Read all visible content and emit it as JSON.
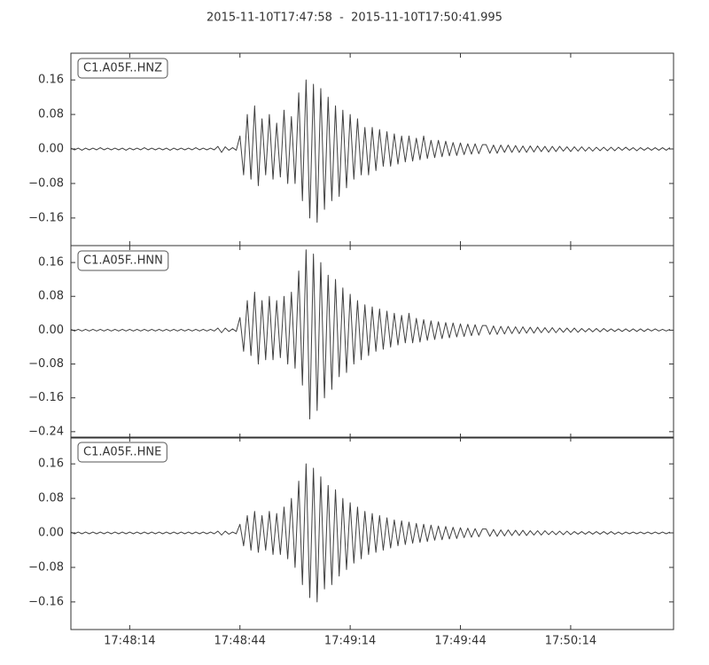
{
  "chart_data": {
    "type": "line",
    "title": "2015-11-10T17:47:58  -  2015-11-10T17:50:41.995",
    "x": [
      "17:47:58",
      "17:47:59",
      "17:48:00",
      "17:48:01",
      "17:48:02",
      "17:48:03",
      "17:48:04",
      "17:48:05",
      "17:48:06",
      "17:48:07",
      "17:48:08",
      "17:48:09",
      "17:48:10",
      "17:48:11",
      "17:48:12",
      "17:48:13",
      "17:48:14",
      "17:48:15",
      "17:48:16",
      "17:48:17",
      "17:48:18",
      "17:48:19",
      "17:48:20",
      "17:48:21",
      "17:48:22",
      "17:48:23",
      "17:48:24",
      "17:48:25",
      "17:48:26",
      "17:48:27",
      "17:48:28",
      "17:48:29",
      "17:48:30",
      "17:48:31",
      "17:48:32",
      "17:48:33",
      "17:48:34",
      "17:48:35",
      "17:48:36",
      "17:48:37",
      "17:48:38",
      "17:48:39",
      "17:48:40",
      "17:48:41",
      "17:48:42",
      "17:48:43",
      "17:48:44",
      "17:48:45",
      "17:48:46",
      "17:48:47",
      "17:48:48",
      "17:48:49",
      "17:48:50",
      "17:48:51",
      "17:48:52",
      "17:48:53",
      "17:48:54",
      "17:48:55",
      "17:48:56",
      "17:48:57",
      "17:48:58",
      "17:48:59",
      "17:49:00",
      "17:49:01",
      "17:49:02",
      "17:49:03",
      "17:49:04",
      "17:49:05",
      "17:49:06",
      "17:49:07",
      "17:49:08",
      "17:49:09",
      "17:49:10",
      "17:49:11",
      "17:49:12",
      "17:49:13",
      "17:49:14",
      "17:49:15",
      "17:49:16",
      "17:49:17",
      "17:49:18",
      "17:49:19",
      "17:49:20",
      "17:49:21",
      "17:49:22",
      "17:49:23",
      "17:49:24",
      "17:49:25",
      "17:49:26",
      "17:49:27",
      "17:49:28",
      "17:49:29",
      "17:49:30",
      "17:49:31",
      "17:49:32",
      "17:49:33",
      "17:49:34",
      "17:49:35",
      "17:49:36",
      "17:49:37",
      "17:49:38",
      "17:49:39",
      "17:49:40",
      "17:49:41",
      "17:49:42",
      "17:49:43",
      "17:49:44",
      "17:49:45",
      "17:49:46",
      "17:49:47",
      "17:49:48",
      "17:49:49",
      "17:49:50",
      "17:49:51",
      "17:49:52",
      "17:49:53",
      "17:49:54",
      "17:49:55",
      "17:49:56",
      "17:49:57",
      "17:49:58",
      "17:49:59",
      "17:50:00",
      "17:50:01",
      "17:50:02",
      "17:50:03",
      "17:50:04",
      "17:50:05",
      "17:50:06",
      "17:50:07",
      "17:50:08",
      "17:50:09",
      "17:50:10",
      "17:50:11",
      "17:50:12",
      "17:50:13",
      "17:50:14",
      "17:50:15",
      "17:50:16",
      "17:50:17",
      "17:50:18",
      "17:50:19",
      "17:50:20",
      "17:50:21",
      "17:50:22",
      "17:50:23",
      "17:50:24",
      "17:50:25",
      "17:50:26",
      "17:50:27",
      "17:50:28",
      "17:50:29",
      "17:50:30",
      "17:50:31",
      "17:50:32",
      "17:50:33",
      "17:50:34",
      "17:50:35",
      "17:50:36",
      "17:50:37",
      "17:50:38",
      "17:50:39",
      "17:50:40",
      "17:50:41"
    ],
    "xlim": [
      "17:47:58",
      "17:50:41.995"
    ],
    "xticks": [
      "17:48:14",
      "17:48:44",
      "17:49:14",
      "17:49:44",
      "17:50:14"
    ],
    "series": [
      {
        "name": "C1.A05F..HNZ",
        "color": "#404040",
        "ylim": [
          -0.224,
          0.222
        ],
        "yticks": [
          {
            "value": -0.16,
            "label": "−0.16"
          },
          {
            "value": -0.08,
            "label": "−0.08"
          },
          {
            "value": 0,
            "label": "0.00"
          },
          0.08,
          0.16
        ],
        "values": [
          0.002,
          -0.002,
          0.002,
          -0.003,
          0.002,
          -0.002,
          0.002,
          -0.002,
          0.003,
          -0.002,
          0.002,
          -0.002,
          0.002,
          -0.002,
          0.002,
          -0.003,
          0.002,
          -0.002,
          0.002,
          -0.002,
          0.003,
          -0.002,
          0.002,
          -0.002,
          0.002,
          -0.002,
          0.002,
          -0.003,
          0.002,
          -0.002,
          0.002,
          -0.002,
          0.002,
          -0.002,
          0.003,
          -0.002,
          0.002,
          -0.002,
          0.002,
          -0.002,
          0.006,
          -0.008,
          0.005,
          -0.003,
          0.003,
          -0.003,
          0.03,
          -0.06,
          0.08,
          -0.07,
          0.1,
          -0.085,
          0.07,
          -0.06,
          0.08,
          -0.07,
          0.06,
          -0.065,
          0.09,
          -0.08,
          0.075,
          -0.08,
          0.13,
          -0.12,
          0.16,
          -0.16,
          0.15,
          -0.17,
          0.14,
          -0.14,
          0.12,
          -0.12,
          0.1,
          -0.11,
          0.09,
          -0.09,
          0.08,
          -0.07,
          0.07,
          -0.06,
          0.05,
          -0.06,
          0.05,
          -0.05,
          0.045,
          -0.04,
          0.04,
          -0.04,
          0.035,
          -0.035,
          0.03,
          -0.03,
          0.03,
          -0.028,
          0.025,
          -0.025,
          0.03,
          -0.022,
          0.02,
          -0.02,
          0.02,
          -0.018,
          0.018,
          -0.016,
          0.015,
          -0.015,
          0.014,
          -0.013,
          0.012,
          -0.012,
          0.012,
          -0.011,
          0.01,
          0.01,
          -0.01,
          0.009,
          -0.01,
          0.009,
          -0.008,
          0.009,
          -0.008,
          0.008,
          -0.008,
          0.007,
          -0.008,
          0.007,
          -0.007,
          0.007,
          -0.006,
          0.006,
          -0.007,
          0.006,
          -0.006,
          0.006,
          -0.005,
          0.005,
          -0.006,
          0.005,
          -0.005,
          0.005,
          -0.005,
          0.004,
          -0.005,
          0.004,
          -0.004,
          0.004,
          -0.004,
          0.004,
          -0.004,
          0.004,
          -0.003,
          0.004,
          -0.003,
          0.003,
          -0.004,
          0.003,
          -0.003,
          0.003,
          -0.003,
          0.003,
          -0.003,
          0.003,
          -0.003,
          0.003
        ]
      },
      {
        "name": "C1.A05F..HNN",
        "color": "#404040",
        "ylim": [
          -0.255,
          0.2
        ],
        "yticks": [
          {
            "value": -0.24,
            "label": "−0.24"
          },
          {
            "value": -0.16,
            "label": "−0.16"
          },
          {
            "value": -0.08,
            "label": "−0.08"
          },
          {
            "value": 0,
            "label": "0.00"
          },
          0.08,
          0.16
        ],
        "values": [
          0.002,
          -0.002,
          0.002,
          -0.002,
          0.002,
          -0.002,
          0.002,
          -0.002,
          0.002,
          -0.002,
          0.002,
          -0.002,
          0.002,
          -0.002,
          0.002,
          -0.002,
          0.002,
          -0.002,
          0.002,
          -0.002,
          0.002,
          -0.002,
          0.002,
          -0.002,
          0.002,
          -0.002,
          0.002,
          -0.002,
          0.002,
          -0.002,
          0.002,
          -0.002,
          0.002,
          -0.002,
          0.002,
          -0.002,
          0.002,
          -0.002,
          0.002,
          -0.002,
          0.005,
          -0.006,
          0.005,
          -0.003,
          0.003,
          -0.003,
          0.03,
          -0.05,
          0.07,
          -0.06,
          0.09,
          -0.08,
          0.07,
          -0.07,
          0.08,
          -0.07,
          0.07,
          -0.065,
          0.08,
          -0.08,
          0.09,
          -0.09,
          0.14,
          -0.13,
          0.19,
          -0.21,
          0.18,
          -0.19,
          0.16,
          -0.16,
          0.13,
          -0.14,
          0.12,
          -0.11,
          0.1,
          -0.1,
          0.085,
          -0.08,
          0.07,
          -0.07,
          0.06,
          -0.06,
          0.055,
          -0.05,
          0.05,
          -0.045,
          0.045,
          -0.04,
          0.04,
          -0.035,
          0.035,
          -0.03,
          0.04,
          -0.03,
          0.028,
          -0.028,
          0.025,
          -0.024,
          0.022,
          -0.022,
          0.02,
          -0.02,
          0.018,
          -0.018,
          0.017,
          -0.016,
          0.015,
          -0.015,
          0.014,
          -0.013,
          0.013,
          -0.012,
          0.011,
          0.011,
          -0.01,
          0.01,
          -0.01,
          0.009,
          -0.009,
          0.009,
          -0.008,
          0.008,
          -0.008,
          0.008,
          -0.007,
          0.007,
          -0.007,
          0.007,
          -0.006,
          0.006,
          -0.006,
          0.006,
          -0.006,
          0.005,
          -0.005,
          0.005,
          -0.005,
          0.005,
          -0.005,
          0.004,
          -0.004,
          0.004,
          -0.004,
          0.004,
          -0.004,
          0.004,
          -0.003,
          0.003,
          -0.003,
          0.003,
          -0.003,
          0.003,
          -0.003,
          0.003,
          -0.003,
          0.003,
          -0.003,
          0.003,
          -0.002,
          0.003,
          -0.002,
          0.002,
          -0.002,
          0.002
        ]
      },
      {
        "name": "C1.A05F..HNE",
        "color": "#404040",
        "ylim": [
          -0.224,
          0.222
        ],
        "yticks": [
          {
            "value": -0.16,
            "label": "−0.16"
          },
          {
            "value": -0.08,
            "label": "−0.08"
          },
          {
            "value": 0,
            "label": "0.00"
          },
          0.08,
          0.16
        ],
        "values": [
          0.002,
          -0.002,
          0.002,
          -0.002,
          0.002,
          -0.002,
          0.002,
          -0.002,
          0.002,
          -0.002,
          0.002,
          -0.002,
          0.002,
          -0.002,
          0.002,
          -0.002,
          0.002,
          -0.002,
          0.002,
          -0.002,
          0.002,
          -0.002,
          0.002,
          -0.002,
          0.002,
          -0.002,
          0.002,
          -0.002,
          0.002,
          -0.002,
          0.002,
          -0.002,
          0.002,
          -0.002,
          0.002,
          -0.002,
          0.002,
          -0.002,
          0.002,
          -0.002,
          0.004,
          -0.005,
          0.004,
          -0.003,
          0.002,
          -0.002,
          0.02,
          -0.03,
          0.04,
          -0.04,
          0.05,
          -0.045,
          0.04,
          -0.04,
          0.05,
          -0.05,
          0.045,
          -0.05,
          0.06,
          -0.06,
          0.08,
          -0.08,
          0.12,
          -0.12,
          0.16,
          -0.15,
          0.15,
          -0.16,
          0.13,
          -0.13,
          0.11,
          -0.12,
          0.1,
          -0.1,
          0.08,
          -0.085,
          0.07,
          -0.07,
          0.06,
          -0.06,
          0.05,
          -0.05,
          0.045,
          -0.045,
          0.04,
          -0.04,
          0.035,
          -0.035,
          0.03,
          -0.03,
          0.028,
          -0.027,
          0.025,
          -0.024,
          0.022,
          -0.022,
          0.02,
          -0.02,
          0.018,
          -0.017,
          0.016,
          -0.016,
          0.015,
          -0.014,
          0.013,
          -0.013,
          0.012,
          -0.011,
          0.011,
          -0.01,
          0.01,
          -0.009,
          0.009,
          0.009,
          -0.008,
          0.008,
          -0.008,
          0.007,
          -0.007,
          0.007,
          -0.006,
          0.006,
          -0.006,
          0.006,
          -0.006,
          0.005,
          -0.005,
          0.005,
          -0.005,
          0.005,
          -0.004,
          0.004,
          -0.004,
          0.004,
          -0.004,
          0.004,
          -0.004,
          0.003,
          -0.003,
          0.003,
          -0.003,
          0.003,
          -0.003,
          0.003,
          -0.003,
          0.003,
          -0.003,
          0.003,
          -0.003,
          0.002,
          -0.003,
          0.002,
          -0.002,
          0.002,
          -0.002,
          0.002,
          -0.002,
          0.002,
          -0.002,
          0.002,
          -0.002,
          0.002,
          -0.002,
          0.002
        ]
      }
    ]
  }
}
